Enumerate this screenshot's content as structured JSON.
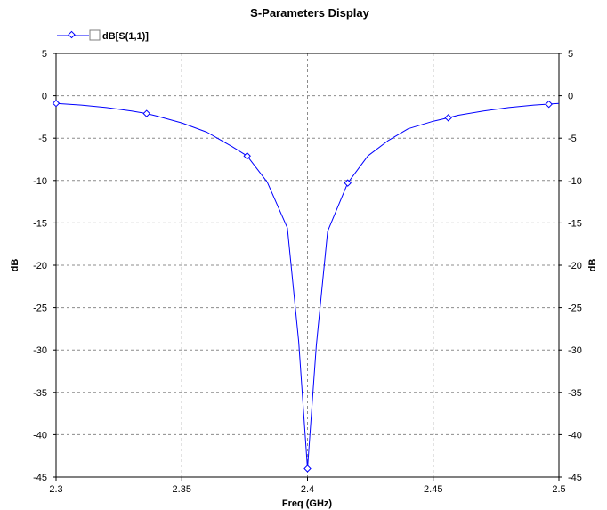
{
  "chart_data": {
    "type": "line",
    "title": "S-Parameters Display",
    "xlabel": "Freq (GHz)",
    "ylabel": "dB",
    "ylabel_right": "dB",
    "xlim": [
      2.3,
      2.5
    ],
    "ylim": [
      -45,
      5
    ],
    "x_ticks": [
      2.3,
      2.35,
      2.4,
      2.45,
      2.5
    ],
    "x_tick_labels": [
      "2.3",
      "2.35",
      "2.4",
      "2.45",
      "2.5"
    ],
    "y_ticks": [
      5,
      0,
      -5,
      -10,
      -15,
      -20,
      -25,
      -30,
      -35,
      -40,
      -45
    ],
    "y_tick_labels": [
      "5",
      "0",
      "-5",
      "-10",
      "-15",
      "-20",
      "-25",
      "-30",
      "-35",
      "-40",
      "-45"
    ],
    "grid": true,
    "legend_position": "top-left",
    "series": [
      {
        "name": "dB[S(1,1)]",
        "color": "#0000ff",
        "x": [
          2.3,
          2.31,
          2.32,
          2.33,
          2.336,
          2.34,
          2.35,
          2.36,
          2.37,
          2.376,
          2.384,
          2.392,
          2.3965,
          2.4,
          2.4035,
          2.408,
          2.416,
          2.424,
          2.432,
          2.44,
          2.45,
          2.456,
          2.46,
          2.47,
          2.48,
          2.49,
          2.5
        ],
        "y": [
          -0.9,
          -1.1,
          -1.4,
          -1.8,
          -2.1,
          -2.4,
          -3.2,
          -4.3,
          -6.0,
          -7.1,
          -10.2,
          -15.6,
          -29.0,
          -44.0,
          -29.5,
          -16.0,
          -10.3,
          -7.1,
          -5.3,
          -3.9,
          -3.0,
          -2.6,
          -2.3,
          -1.8,
          -1.4,
          -1.1,
          -0.9
        ]
      }
    ],
    "markers": [
      {
        "x": 2.3,
        "y": -0.9
      },
      {
        "x": 2.336,
        "y": -2.1
      },
      {
        "x": 2.376,
        "y": -7.1
      },
      {
        "x": 2.4,
        "y": -44.0
      },
      {
        "x": 2.416,
        "y": -10.3
      },
      {
        "x": 2.456,
        "y": -2.6
      },
      {
        "x": 2.496,
        "y": -1.0
      }
    ]
  }
}
